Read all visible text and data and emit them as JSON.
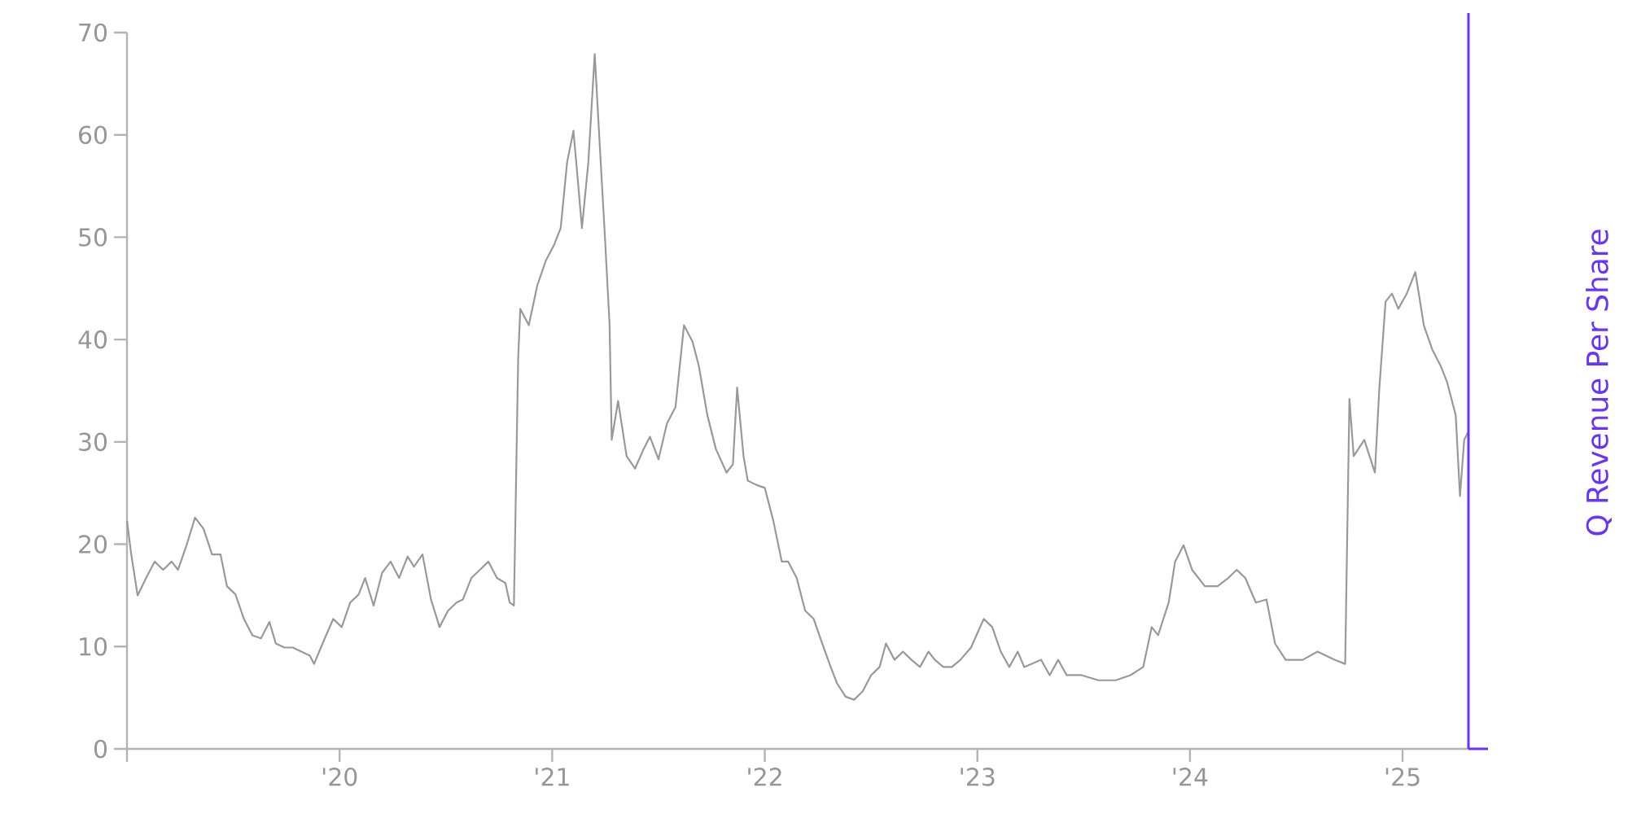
{
  "chart_data": {
    "type": "line",
    "y2label": "Q Revenue Per Share",
    "xlim": [
      2019,
      2025.31
    ],
    "ylim": [
      0,
      70
    ],
    "xticks": [
      {
        "value": 2019,
        "label": null
      },
      {
        "value": 2020,
        "label": "'20"
      },
      {
        "value": 2021,
        "label": "'21"
      },
      {
        "value": 2022,
        "label": "'22"
      },
      {
        "value": 2023,
        "label": "'23"
      },
      {
        "value": 2024,
        "label": "'24"
      },
      {
        "value": 2025,
        "label": "'25"
      }
    ],
    "yticks": [
      0,
      10,
      20,
      30,
      40,
      50,
      60,
      70
    ],
    "series": [
      {
        "color": "#999999",
        "x": [
          2019.0,
          2019.02,
          2019.05,
          2019.09,
          2019.13,
          2019.17,
          2019.21,
          2019.24,
          2019.28,
          2019.32,
          2019.36,
          2019.4,
          2019.44,
          2019.47,
          2019.51,
          2019.55,
          2019.59,
          2019.63,
          2019.67,
          2019.7,
          2019.74,
          2019.78,
          2019.82,
          2019.86,
          2019.88,
          2019.92,
          2019.97,
          2020.01,
          2020.05,
          2020.09,
          2020.12,
          2020.16,
          2020.2,
          2020.24,
          2020.28,
          2020.32,
          2020.35,
          2020.39,
          2020.43,
          2020.47,
          2020.51,
          2020.55,
          2020.58,
          2020.62,
          2020.66,
          2020.7,
          2020.74,
          2020.78,
          2020.8,
          2020.82,
          2020.84,
          2020.85,
          2020.89,
          2020.93,
          2020.97,
          2021.01,
          2021.04,
          2021.07,
          2021.1,
          2021.12,
          2021.14,
          2021.17,
          2021.2,
          2021.22,
          2021.25,
          2021.27,
          2021.28,
          2021.31,
          2021.35,
          2021.39,
          2021.43,
          2021.46,
          2021.5,
          2021.54,
          2021.58,
          2021.62,
          2021.66,
          2021.69,
          2021.73,
          2021.77,
          2021.82,
          2021.85,
          2021.87,
          2021.9,
          2021.92,
          2021.96,
          2022.0,
          2022.04,
          2022.08,
          2022.11,
          2022.15,
          2022.19,
          2022.23,
          2022.27,
          2022.31,
          2022.34,
          2022.38,
          2022.42,
          2022.46,
          2022.5,
          2022.54,
          2022.57,
          2022.61,
          2022.65,
          2022.69,
          2022.73,
          2022.77,
          2022.8,
          2022.84,
          2022.88,
          2022.92,
          2022.97,
          2023.03,
          2023.07,
          2023.11,
          2023.15,
          2023.19,
          2023.22,
          2023.3,
          2023.34,
          2023.38,
          2023.42,
          2023.49,
          2023.57,
          2023.65,
          2023.72,
          2023.78,
          2023.82,
          2023.85,
          2023.9,
          2023.93,
          2023.97,
          2024.01,
          2024.07,
          2024.13,
          2024.18,
          2024.22,
          2024.26,
          2024.31,
          2024.36,
          2024.4,
          2024.45,
          2024.53,
          2024.6,
          2024.68,
          2024.73,
          2024.75,
          2024.77,
          2024.82,
          2024.87,
          2024.89,
          2024.92,
          2024.95,
          2024.98,
          2025.02,
          2025.06,
          2025.1,
          2025.14,
          2025.18,
          2025.21,
          2025.25,
          2025.27,
          2025.29,
          2025.31
        ],
        "values": [
          22.3,
          19.0,
          15.0,
          16.7,
          18.3,
          17.5,
          18.3,
          17.5,
          19.9,
          22.6,
          21.5,
          19.0,
          19.0,
          15.9,
          15.1,
          12.7,
          11.1,
          10.8,
          12.4,
          10.3,
          9.9,
          9.9,
          9.5,
          9.1,
          8.3,
          10.3,
          12.7,
          11.9,
          14.3,
          15.1,
          16.7,
          14.0,
          17.2,
          18.3,
          16.7,
          18.8,
          17.8,
          19.0,
          14.6,
          11.9,
          13.5,
          14.3,
          14.6,
          16.7,
          17.5,
          18.3,
          16.7,
          16.2,
          14.3,
          14.0,
          38.2,
          43.0,
          41.4,
          45.3,
          47.7,
          49.3,
          50.9,
          57.3,
          60.4,
          55.7,
          50.9,
          57.3,
          67.9,
          60.4,
          49.3,
          41.4,
          30.2,
          34.0,
          28.6,
          27.4,
          29.3,
          30.5,
          28.3,
          31.8,
          33.4,
          41.4,
          39.8,
          37.4,
          32.6,
          29.3,
          27.0,
          27.8,
          35.3,
          28.6,
          26.2,
          25.8,
          25.5,
          22.3,
          18.3,
          18.3,
          16.7,
          13.5,
          12.7,
          10.3,
          8.0,
          6.4,
          5.1,
          4.8,
          5.6,
          7.2,
          8.0,
          10.3,
          8.7,
          9.5,
          8.7,
          8.0,
          9.5,
          8.7,
          8.0,
          8.0,
          8.7,
          9.9,
          12.7,
          11.9,
          9.5,
          8.0,
          9.5,
          8.0,
          8.7,
          7.2,
          8.7,
          7.2,
          7.2,
          6.7,
          6.7,
          7.2,
          8.0,
          11.9,
          11.1,
          14.3,
          18.3,
          19.9,
          17.5,
          15.9,
          15.9,
          16.7,
          17.5,
          16.7,
          14.3,
          14.6,
          10.3,
          8.7,
          8.7,
          9.5,
          8.7,
          8.3,
          34.2,
          28.6,
          30.2,
          27.0,
          35.0,
          43.7,
          44.5,
          43.0,
          44.5,
          46.6,
          41.4,
          39.0,
          37.4,
          35.8,
          32.6,
          24.7,
          30.2,
          31.0
        ]
      }
    ]
  }
}
